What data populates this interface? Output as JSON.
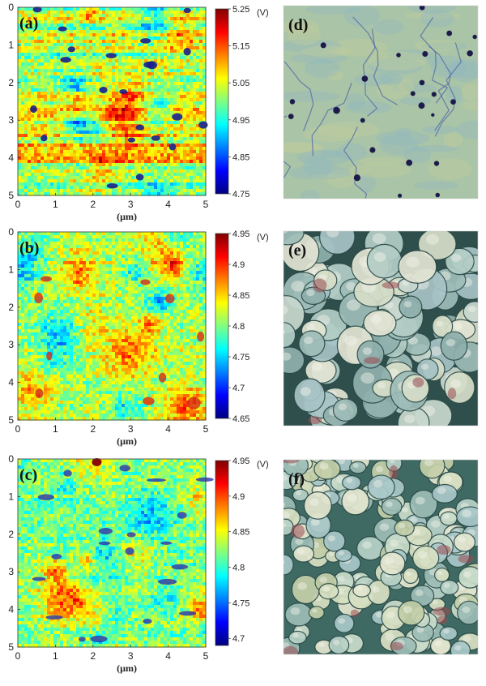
{
  "figure": {
    "kpfm_panels": [
      {
        "id": "a",
        "label": "(a)",
        "xlabel": "(µm)",
        "x_ticks": [
          "0",
          "1",
          "2",
          "3",
          "4",
          "5"
        ],
        "y_ticks": [
          "0",
          "1",
          "2",
          "3",
          "4",
          "5"
        ],
        "cbar_unit": "(V)",
        "cbar_min": 4.75,
        "cbar_max": 5.25,
        "cbar_ticks": [
          "5.25",
          "5.15",
          "5.05",
          "4.95",
          "4.85",
          "4.75"
        ],
        "seed": 11,
        "texture": "streaky-with-pits"
      },
      {
        "id": "b",
        "label": "(b)",
        "xlabel": "(µm)",
        "x_ticks": [
          "0",
          "1",
          "2",
          "3",
          "4",
          "5"
        ],
        "y_ticks": [
          "0",
          "1",
          "2",
          "3",
          "4",
          "5"
        ],
        "cbar_unit": "(V)",
        "cbar_min": 4.65,
        "cbar_max": 4.95,
        "cbar_ticks": [
          "4.95",
          "4.9",
          "4.85",
          "4.8",
          "4.75",
          "4.7",
          "4.65"
        ],
        "seed": 23,
        "texture": "granular"
      },
      {
        "id": "c",
        "label": "(c)",
        "xlabel": "(µm)",
        "x_ticks": [
          "0",
          "1",
          "2",
          "3",
          "4",
          "5"
        ],
        "y_ticks": [
          "0",
          "1",
          "2",
          "3",
          "4",
          "5"
        ],
        "cbar_unit": "(V)",
        "cbar_min": 4.69,
        "cbar_max": 4.95,
        "cbar_ticks": [
          "4.95",
          "4.9",
          "4.85",
          "4.8",
          "4.75",
          "4.7"
        ],
        "seed": 37,
        "texture": "granular-with-dark-clusters"
      }
    ],
    "topography_panels": [
      {
        "id": "d",
        "label": "(d)",
        "seed": 5,
        "texture": "smooth-with-pits"
      },
      {
        "id": "e",
        "label": "(e)",
        "seed": 41,
        "texture": "large-grains"
      },
      {
        "id": "f",
        "label": "(f)",
        "seed": 59,
        "texture": "small-grains"
      }
    ]
  },
  "chart_data": [
    {
      "type": "heatmap",
      "title": "(a)",
      "xlabel": "(µm)",
      "ylabel": "",
      "xlim": [
        0,
        5
      ],
      "ylim": [
        5,
        0
      ],
      "colorbar": {
        "label": "(V)",
        "range": [
          4.75,
          5.25
        ],
        "ticks": [
          5.25,
          5.15,
          5.05,
          4.95,
          4.85,
          4.75
        ]
      }
    },
    {
      "type": "heatmap",
      "title": "(b)",
      "xlabel": "(µm)",
      "ylabel": "",
      "xlim": [
        0,
        5
      ],
      "ylim": [
        5,
        0
      ],
      "colorbar": {
        "label": "(V)",
        "range": [
          4.65,
          4.95
        ],
        "ticks": [
          4.95,
          4.9,
          4.85,
          4.8,
          4.75,
          4.7,
          4.65
        ]
      }
    },
    {
      "type": "heatmap",
      "title": "(c)",
      "xlabel": "(µm)",
      "ylabel": "",
      "xlim": [
        0,
        5
      ],
      "ylim": [
        5,
        0
      ],
      "colorbar": {
        "label": "(V)",
        "range": [
          4.69,
          4.95
        ],
        "ticks": [
          4.95,
          4.9,
          4.85,
          4.8,
          4.75,
          4.7
        ]
      }
    }
  ],
  "colors": {
    "ink": "#222222",
    "frame": "#333333"
  }
}
